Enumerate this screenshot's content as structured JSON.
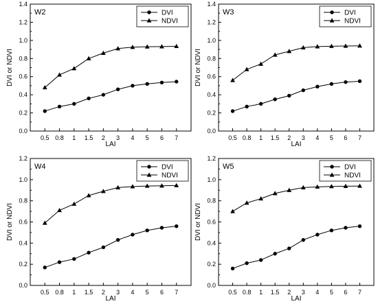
{
  "chart_data": [
    {
      "type": "line",
      "panel_label": "W2",
      "xlabel": "LAI",
      "ylabel": "DVI or NDVI",
      "categories": [
        "0.5",
        "0.8",
        "1",
        "1.5",
        "2",
        "3",
        "4",
        "5",
        "6",
        "7"
      ],
      "ylim": [
        0,
        1.4
      ],
      "yticks": [
        "0.0",
        "0.2",
        "0.4",
        "0.6",
        "0.8",
        "1.0",
        "1.2",
        "1.4"
      ],
      "grid": false,
      "legend_position": "top-right",
      "series": [
        {
          "name": "DVI",
          "marker": "circle",
          "values": [
            0.22,
            0.27,
            0.3,
            0.36,
            0.4,
            0.46,
            0.5,
            0.52,
            0.535,
            0.545
          ]
        },
        {
          "name": "NDVI",
          "marker": "triangle",
          "values": [
            0.48,
            0.62,
            0.69,
            0.8,
            0.86,
            0.91,
            0.925,
            0.93,
            0.932,
            0.935
          ]
        }
      ]
    },
    {
      "type": "line",
      "panel_label": "W3",
      "xlabel": "LAI",
      "ylabel": "DVI or NDVI",
      "categories": [
        "0.5",
        "0.8",
        "1",
        "1.5",
        "2",
        "3",
        "4",
        "5",
        "6",
        "7"
      ],
      "ylim": [
        0,
        1.4
      ],
      "yticks": [
        "0.0",
        "0.2",
        "0.4",
        "0.6",
        "0.8",
        "1.0",
        "1.2",
        "1.4"
      ],
      "grid": false,
      "legend_position": "top-right",
      "series": [
        {
          "name": "DVI",
          "marker": "circle",
          "values": [
            0.22,
            0.27,
            0.3,
            0.35,
            0.39,
            0.45,
            0.49,
            0.52,
            0.54,
            0.55
          ]
        },
        {
          "name": "NDVI",
          "marker": "triangle",
          "values": [
            0.56,
            0.68,
            0.74,
            0.84,
            0.88,
            0.92,
            0.932,
            0.936,
            0.938,
            0.94
          ]
        }
      ]
    },
    {
      "type": "line",
      "panel_label": "W4",
      "xlabel": "LAI",
      "ylabel": "DVI or NDVI",
      "categories": [
        "0.5",
        "0.8",
        "1",
        "1.5",
        "2",
        "3",
        "4",
        "5",
        "6",
        "7"
      ],
      "ylim": [
        0,
        1.2
      ],
      "yticks": [
        "0.0",
        "0.2",
        "0.4",
        "0.6",
        "0.8",
        "1.0",
        "1.2"
      ],
      "grid": false,
      "legend_position": "top-right",
      "series": [
        {
          "name": "DVI",
          "marker": "circle",
          "values": [
            0.17,
            0.22,
            0.25,
            0.31,
            0.36,
            0.43,
            0.48,
            0.52,
            0.545,
            0.56
          ]
        },
        {
          "name": "NDVI",
          "marker": "triangle",
          "values": [
            0.59,
            0.71,
            0.77,
            0.85,
            0.89,
            0.925,
            0.935,
            0.94,
            0.942,
            0.945
          ]
        }
      ]
    },
    {
      "type": "line",
      "panel_label": "W5",
      "xlabel": "LAI",
      "ylabel": "DVI or NDVI",
      "categories": [
        "0.5",
        "0.8",
        "1",
        "1.5",
        "2",
        "3",
        "4",
        "5",
        "6",
        "7"
      ],
      "ylim": [
        0,
        1.2
      ],
      "yticks": [
        "0.0",
        "0.2",
        "0.4",
        "0.6",
        "0.8",
        "1.0",
        "1.2"
      ],
      "grid": false,
      "legend_position": "top-right",
      "series": [
        {
          "name": "DVI",
          "marker": "circle",
          "values": [
            0.16,
            0.21,
            0.24,
            0.3,
            0.35,
            0.43,
            0.48,
            0.52,
            0.545,
            0.56
          ]
        },
        {
          "name": "NDVI",
          "marker": "triangle",
          "values": [
            0.7,
            0.78,
            0.82,
            0.87,
            0.9,
            0.925,
            0.932,
            0.936,
            0.938,
            0.94
          ]
        }
      ]
    }
  ]
}
